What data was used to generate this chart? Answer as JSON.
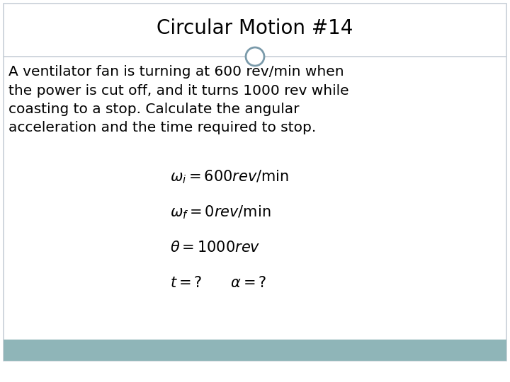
{
  "title": "Circular Motion #14",
  "title_fontsize": 20,
  "body_text": "A ventilator fan is turning at 600 rev/min when\nthe power is cut off, and it turns 1000 rev while\ncoasting to a stop. Calculate the angular\nacceleration and the time required to stop.",
  "body_fontsize": 14.5,
  "equations": [
    "$\\omega_i = 600rev / \\mathrm{min}$",
    "$\\omega_f = 0rev / \\mathrm{min}$",
    "$\\theta = 1000rev$",
    "$t = ? \\qquad \\alpha = ?$"
  ],
  "eq_fontsize": 15,
  "background_color": "#ffffff",
  "border_color": "#c8d0d8",
  "circle_color": "#7a9aaa",
  "footer_color": "#8fb5b8",
  "divider_color": "#c8d0d8"
}
